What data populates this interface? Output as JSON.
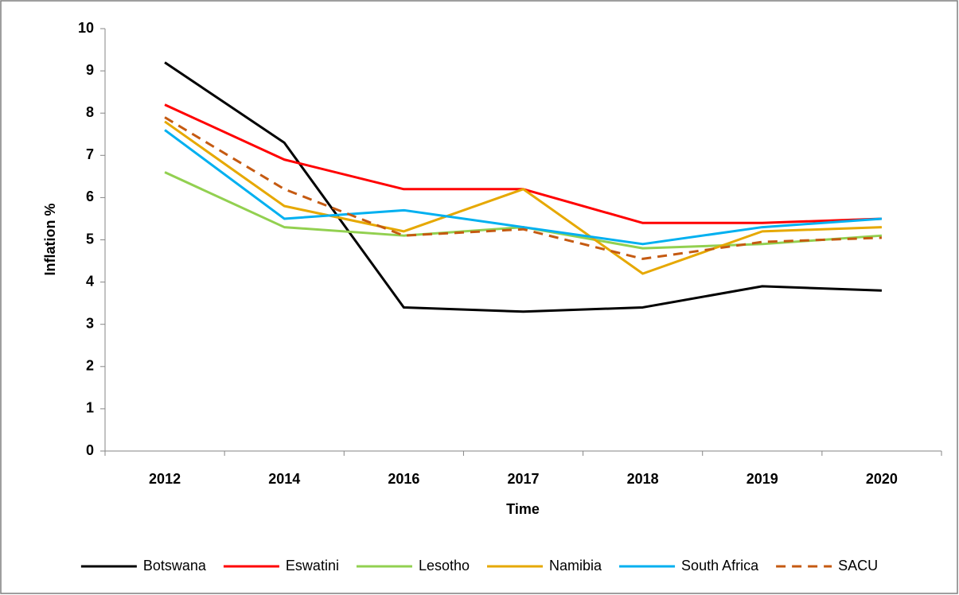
{
  "chart_data": {
    "type": "line",
    "xlabel": "Time",
    "ylabel": "Inflation %",
    "categories": [
      "2012",
      "2014",
      "2016",
      "2017",
      "2018",
      "2019",
      "2020"
    ],
    "series": [
      {
        "name": "Botswana",
        "color": "#000000",
        "values": [
          9.2,
          7.3,
          3.4,
          3.3,
          3.4,
          3.9,
          3.8
        ]
      },
      {
        "name": "Eswatini",
        "color": "#ff0000",
        "values": [
          8.2,
          6.9,
          6.2,
          6.2,
          5.4,
          5.4,
          5.5
        ]
      },
      {
        "name": "Lesotho",
        "color": "#92d050",
        "values": [
          6.6,
          5.3,
          5.1,
          5.3,
          4.8,
          4.9,
          5.1
        ]
      },
      {
        "name": "Namibia",
        "color": "#e6a800",
        "values": [
          7.8,
          5.8,
          5.2,
          6.2,
          4.2,
          5.2,
          5.3
        ]
      },
      {
        "name": "South Africa",
        "color": "#00b0f0",
        "values": [
          7.6,
          5.5,
          5.7,
          5.3,
          4.9,
          5.3,
          5.5
        ]
      },
      {
        "name": "SACU",
        "color": "#c55a11",
        "dash": true,
        "values": [
          7.9,
          6.2,
          5.1,
          5.25,
          4.55,
          4.95,
          5.05
        ]
      }
    ],
    "ylim": [
      0,
      10
    ],
    "yticks": [
      0,
      1,
      2,
      3,
      4,
      5,
      6,
      7,
      8,
      9,
      10
    ],
    "grid": false,
    "legend": "bottom"
  }
}
